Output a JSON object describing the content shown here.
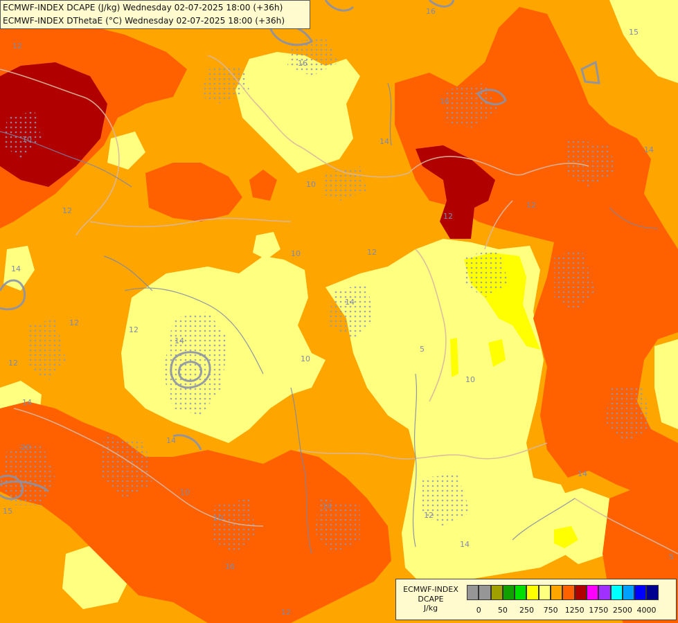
{
  "header": {
    "title_line_1": "ECMWF-INDEX DCAPE (J/kg) Wednesday 02-07-2025 18:00 (+36h)",
    "title_line_2": "ECMWF-INDEX DThetaE (°C) Wednesday 02-07-2025 18:00 (+36h)"
  },
  "legend": {
    "model": "ECMWF-INDEX",
    "variable": "DCAPE",
    "unit": "J/kg",
    "swatch_colors": [
      "#969696",
      "#969696",
      "#a0a000",
      "#10a000",
      "#00e000",
      "#ffff00",
      "#ffff80",
      "#ffa500",
      "#ff6000",
      "#b00000",
      "#ff00ff",
      "#a030ff",
      "#00ffff",
      "#00a0ff",
      "#0000ff",
      "#000090"
    ],
    "tick_labels": [
      "0",
      "50",
      "250",
      "750",
      "1250",
      "1750",
      "2500",
      "4000"
    ]
  },
  "map": {
    "fill_colors": {
      "low": "#ffff80",
      "medium": "#ffa500",
      "high": "#ff6000",
      "very_high": "#b00000",
      "peak": "#ffff00"
    },
    "contour_labels": [
      "16",
      "16",
      "10",
      "12",
      "12",
      "12",
      "14",
      "14",
      "14",
      "14",
      "12",
      "10",
      "12",
      "5",
      "10",
      "14",
      "14",
      "14",
      "20",
      "15",
      "10",
      "12",
      "14",
      "12",
      "14",
      "10",
      "5",
      "16",
      "12",
      "16",
      "15",
      "10",
      "10",
      "12",
      "14",
      "12"
    ]
  }
}
